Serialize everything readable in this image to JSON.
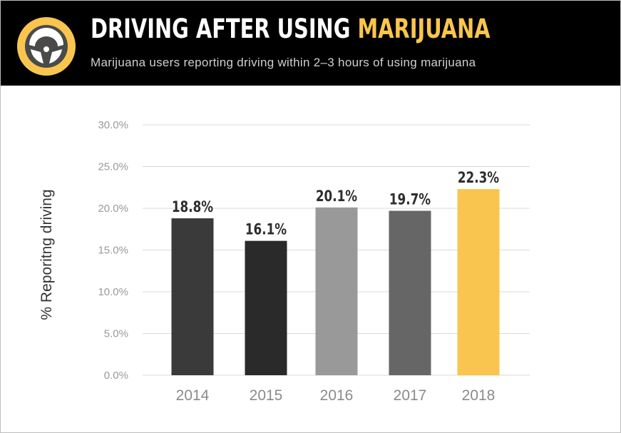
{
  "header": {
    "title_main": "DRIVING AFTER USING ",
    "title_highlight": "MARIJUANA",
    "subtitle": "Marijuana users reporting driving within 2–3 hours of using marijuana",
    "icon": "steering-wheel-icon",
    "accent_color": "#f9c54e"
  },
  "chart_data": {
    "type": "bar",
    "categories": [
      "2014",
      "2015",
      "2016",
      "2017",
      "2018"
    ],
    "values": [
      18.8,
      16.1,
      20.1,
      19.7,
      22.3
    ],
    "data_labels": [
      "18.8%",
      "16.1%",
      "20.1%",
      "19.7%",
      "22.3%"
    ],
    "colors": [
      "#3a3a3a",
      "#2a2a2a",
      "#999999",
      "#666666",
      "#f9c54e"
    ],
    "ylabel": "% Reporitng driving",
    "xlabel": "",
    "ylim": [
      0,
      30
    ],
    "yticks": [
      "0.0%",
      "5.0%",
      "10.0%",
      "15.0%",
      "20.0%",
      "25.0%",
      "30.0%"
    ],
    "grid": true,
    "legend": "none"
  }
}
